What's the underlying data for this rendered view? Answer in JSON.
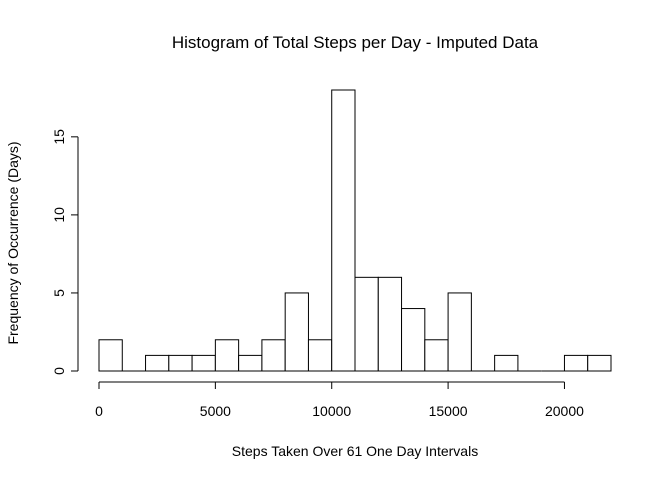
{
  "chart_data": {
    "type": "bar",
    "title": "Histogram of Total Steps per Day - Imputed Data",
    "xlabel": "Steps Taken Over 61 One Day Intervals",
    "ylabel": "Frequency of Occurrence (Days)",
    "bin_width": 1000,
    "bins": [
      {
        "start": 0,
        "end": 1000,
        "count": 2
      },
      {
        "start": 1000,
        "end": 2000,
        "count": 0
      },
      {
        "start": 2000,
        "end": 3000,
        "count": 1
      },
      {
        "start": 3000,
        "end": 4000,
        "count": 1
      },
      {
        "start": 4000,
        "end": 5000,
        "count": 1
      },
      {
        "start": 5000,
        "end": 6000,
        "count": 2
      },
      {
        "start": 6000,
        "end": 7000,
        "count": 1
      },
      {
        "start": 7000,
        "end": 8000,
        "count": 2
      },
      {
        "start": 8000,
        "end": 9000,
        "count": 5
      },
      {
        "start": 9000,
        "end": 10000,
        "count": 2
      },
      {
        "start": 10000,
        "end": 11000,
        "count": 18
      },
      {
        "start": 11000,
        "end": 12000,
        "count": 6
      },
      {
        "start": 12000,
        "end": 13000,
        "count": 6
      },
      {
        "start": 13000,
        "end": 14000,
        "count": 4
      },
      {
        "start": 14000,
        "end": 15000,
        "count": 2
      },
      {
        "start": 15000,
        "end": 16000,
        "count": 5
      },
      {
        "start": 16000,
        "end": 17000,
        "count": 0
      },
      {
        "start": 17000,
        "end": 18000,
        "count": 1
      },
      {
        "start": 18000,
        "end": 19000,
        "count": 0
      },
      {
        "start": 19000,
        "end": 20000,
        "count": 0
      },
      {
        "start": 20000,
        "end": 21000,
        "count": 1
      },
      {
        "start": 21000,
        "end": 22000,
        "count": 1
      }
    ],
    "xlim": [
      0,
      22000
    ],
    "ylim": [
      0,
      18
    ],
    "xticks": [
      0,
      5000,
      10000,
      15000,
      20000
    ],
    "xtick_labels": [
      "0",
      "5000",
      "10000",
      "15000",
      "20000"
    ],
    "yticks": [
      0,
      5,
      10,
      15
    ],
    "ytick_labels": [
      "0",
      "5",
      "10",
      "15"
    ],
    "grid": false,
    "legend": "none"
  }
}
